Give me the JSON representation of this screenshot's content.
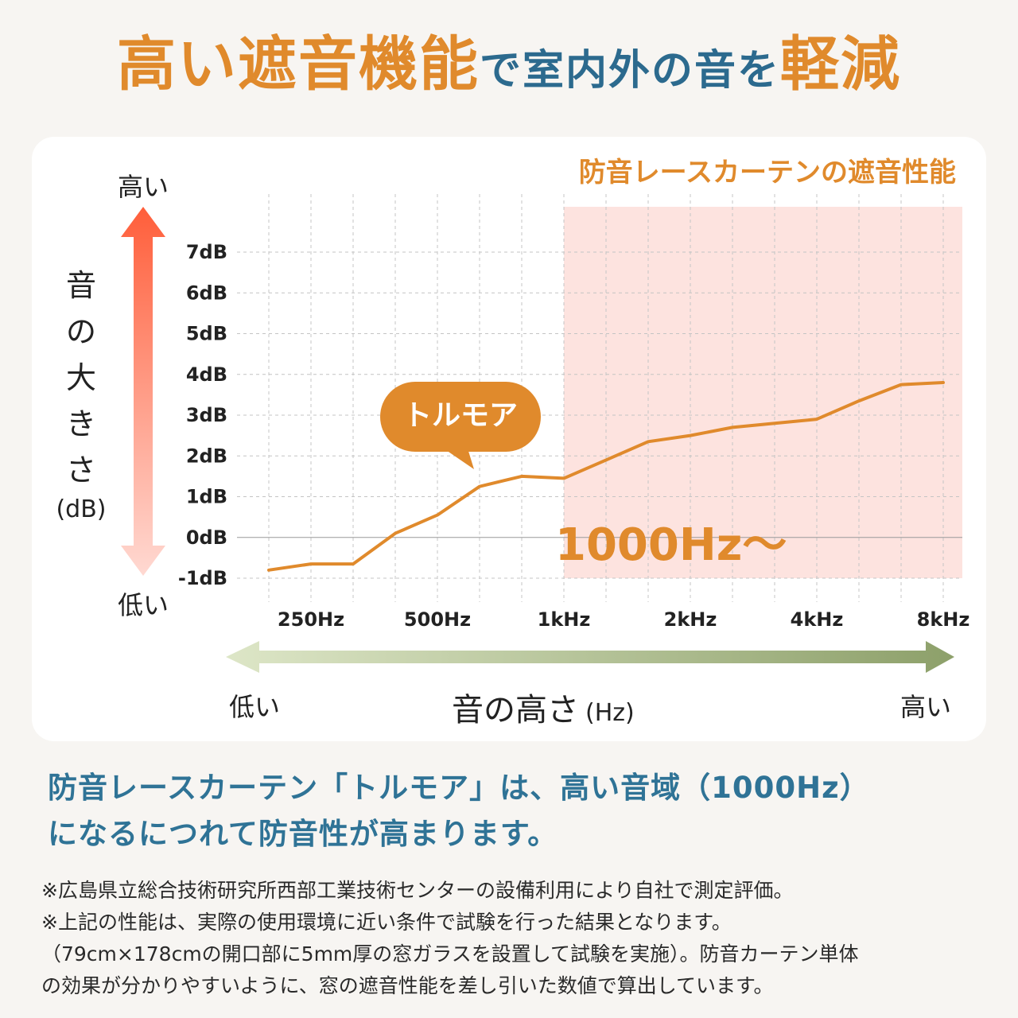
{
  "headline": {
    "part1": "高い遮音機能",
    "part2": "で室内外の音を",
    "part3": "軽減"
  },
  "chart_data": {
    "type": "line",
    "title": "防音レースカーテンの遮音性能",
    "series": [
      {
        "name": "トルモア",
        "color": "#e08a2c",
        "x": [
          "200Hz",
          "250Hz",
          "315Hz",
          "400Hz",
          "500Hz",
          "630Hz",
          "800Hz",
          "1kHz",
          "1.25kHz",
          "1.6kHz",
          "2kHz",
          "2.5kHz",
          "3.15kHz",
          "4kHz",
          "5kHz",
          "6.3kHz",
          "8kHz"
        ],
        "values": [
          -0.8,
          -0.65,
          -0.65,
          0.1,
          0.55,
          1.25,
          1.5,
          1.45,
          1.9,
          2.35,
          2.5,
          2.7,
          2.8,
          2.9,
          3.35,
          3.75,
          3.8
        ]
      }
    ],
    "x_ticks": [
      "250Hz",
      "500Hz",
      "1kHz",
      "2kHz",
      "4kHz",
      "8kHz"
    ],
    "y_ticks": [
      "7dB",
      "6dB",
      "5dB",
      "4dB",
      "3dB",
      "2dB",
      "1dB",
      "0dB",
      "-1dB"
    ],
    "ylim": [
      -1,
      7
    ],
    "highlight": {
      "from": "1kHz",
      "label": "1000Hz〜",
      "color": "#fde3df"
    },
    "ylabel": "音の大きさ",
    "ylabel_unit": "(dB)",
    "y_high": "高い",
    "y_low": "低い",
    "xlabel": "音の高さ",
    "xlabel_unit": "(Hz)",
    "x_low": "低い",
    "x_high": "高い",
    "grid": true
  },
  "summary": {
    "line1": "防音レースカーテン「トルモア」は、高い音域（1000Hz）",
    "line2": "になるにつれて防音性が高まります。"
  },
  "notes": [
    "※広島県立総合技術研究所西部工業技術センターの設備利用により自社で測定評価。",
    "※上記の性能は、実際の使用環境に近い条件で試験を行った結果となります。",
    "（79cm×178cmの開口部に5mm厚の窓ガラスを設置して試験を実施）。防音カーテン単体",
    "の効果が分かりやすいように、窓の遮音性能を差し引いた数値で算出しています。"
  ]
}
